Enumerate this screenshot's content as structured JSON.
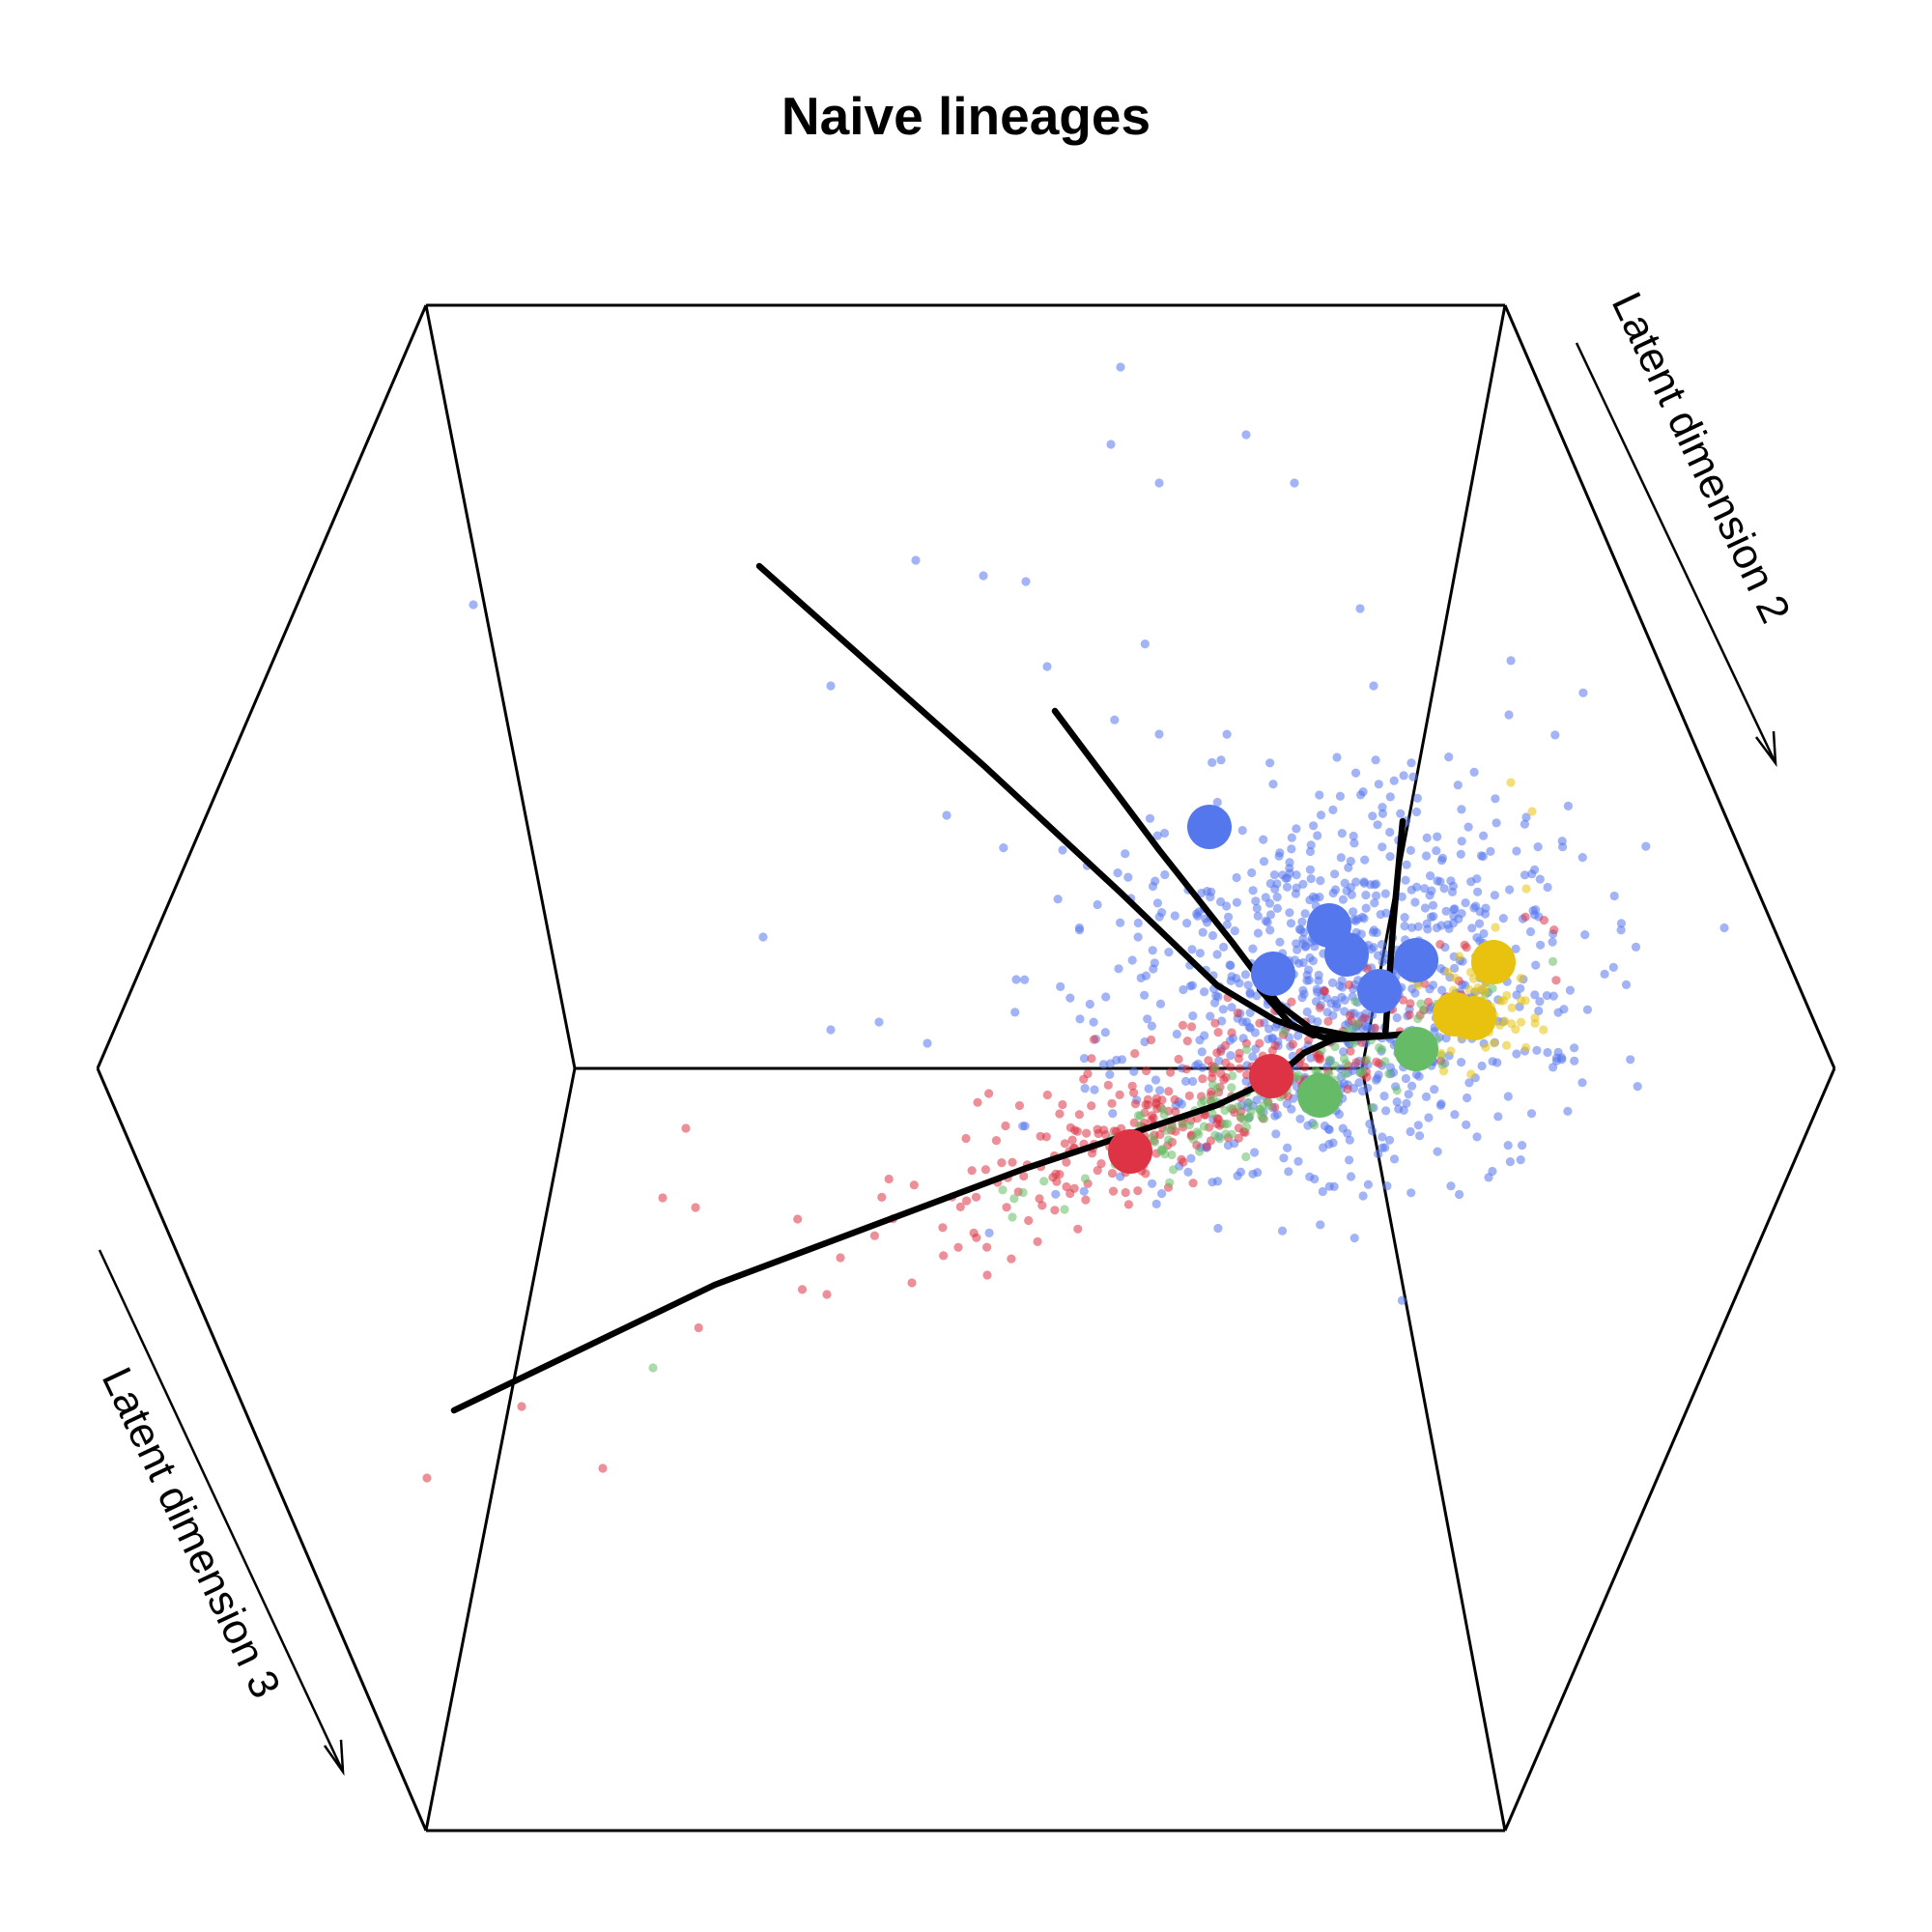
{
  "chart_data": {
    "type": "scatter",
    "title": "Naive lineages",
    "axis_labels": {
      "dim2": "Latent dimension 2",
      "dim3": "Latent dimension 3"
    },
    "colors": {
      "blue": "#5577ee",
      "red": "#dd3344",
      "green": "#66bb66",
      "yellow": "#e8c20f",
      "curve": "#000000"
    },
    "clusters": [
      {
        "color": "blue",
        "n": 900,
        "center": [
          0.695,
          0.51
        ],
        "spread": [
          0.062,
          0.05
        ],
        "rotation": -0.35,
        "outliers": [
          [
            0.58,
            0.19
          ],
          [
            0.575,
            0.23
          ],
          [
            0.645,
            0.225
          ],
          [
            0.67,
            0.25
          ],
          [
            0.6,
            0.25
          ],
          [
            0.474,
            0.29
          ],
          [
            0.509,
            0.298
          ],
          [
            0.531,
            0.301
          ],
          [
            0.245,
            0.313
          ],
          [
            0.43,
            0.355
          ],
          [
            0.395,
            0.485
          ],
          [
            0.49,
            0.422
          ],
          [
            0.704,
            0.315
          ],
          [
            0.711,
            0.355
          ],
          [
            0.781,
            0.37
          ],
          [
            0.79,
            0.423
          ],
          [
            0.785,
            0.515
          ],
          [
            0.43,
            0.533
          ],
          [
            0.48,
            0.54
          ],
          [
            0.55,
            0.44
          ],
          [
            0.6,
            0.38
          ],
          [
            0.542,
            0.345
          ],
          [
            0.455,
            0.529
          ],
          [
            0.526,
            0.507
          ]
        ]
      },
      {
        "color": "red",
        "n": 320,
        "center": [
          0.618,
          0.57
        ],
        "spread": [
          0.075,
          0.016
        ],
        "rotation": -0.42,
        "outliers": [
          [
            0.221,
            0.765
          ],
          [
            0.312,
            0.76
          ],
          [
            0.27,
            0.728
          ],
          [
            0.343,
            0.62
          ],
          [
            0.355,
            0.584
          ],
          [
            0.435,
            0.651
          ],
          [
            0.472,
            0.664
          ],
          [
            0.428,
            0.67
          ],
          [
            0.511,
            0.66
          ],
          [
            0.36,
            0.625
          ]
        ]
      },
      {
        "color": "green",
        "n": 150,
        "center": [
          0.655,
          0.565
        ],
        "spread": [
          0.055,
          0.01
        ],
        "rotation": -0.4,
        "outliers": [
          [
            0.338,
            0.708
          ],
          [
            0.551,
            0.626
          ],
          [
            0.524,
            0.63
          ]
        ]
      },
      {
        "color": "yellow",
        "n": 60,
        "center": [
          0.768,
          0.522
        ],
        "spread": [
          0.014,
          0.013
        ],
        "rotation": 0,
        "outliers": [
          [
            0.782,
            0.405
          ],
          [
            0.793,
            0.42
          ],
          [
            0.79,
            0.46
          ],
          [
            0.774,
            0.48
          ]
        ]
      }
    ],
    "centroids": [
      {
        "color": "blue",
        "points": [
          [
            0.626,
            0.428
          ],
          [
            0.688,
            0.479
          ],
          [
            0.697,
            0.494
          ],
          [
            0.733,
            0.497
          ],
          [
            0.659,
            0.504
          ],
          [
            0.714,
            0.513
          ]
        ]
      },
      {
        "color": "red",
        "points": [
          [
            0.658,
            0.557
          ],
          [
            0.585,
            0.596
          ]
        ]
      },
      {
        "color": "green",
        "points": [
          [
            0.683,
            0.567
          ],
          [
            0.733,
            0.543
          ]
        ]
      },
      {
        "color": "yellow",
        "points": [
          [
            0.773,
            0.498
          ],
          [
            0.763,
            0.527
          ],
          [
            0.753,
            0.525
          ]
        ]
      }
    ],
    "principal_curves": [
      [
        [
          0.393,
          0.293
        ],
        [
          0.51,
          0.397
        ],
        [
          0.58,
          0.462
        ],
        [
          0.63,
          0.51
        ],
        [
          0.66,
          0.528
        ],
        [
          0.685,
          0.537
        ],
        [
          0.705,
          0.537
        ],
        [
          0.73,
          0.535
        ]
      ],
      [
        [
          0.546,
          0.368
        ],
        [
          0.6,
          0.44
        ],
        [
          0.638,
          0.488
        ],
        [
          0.662,
          0.52
        ],
        [
          0.678,
          0.532
        ],
        [
          0.698,
          0.536
        ],
        [
          0.72,
          0.536
        ]
      ],
      [
        [
          0.235,
          0.73
        ],
        [
          0.37,
          0.665
        ],
        [
          0.53,
          0.605
        ],
        [
          0.63,
          0.572
        ],
        [
          0.66,
          0.558
        ],
        [
          0.675,
          0.545
        ],
        [
          0.69,
          0.538
        ],
        [
          0.72,
          0.536
        ],
        [
          0.73,
          0.535
        ]
      ],
      [
        [
          0.652,
          0.512
        ],
        [
          0.668,
          0.53
        ],
        [
          0.68,
          0.536
        ]
      ],
      [
        [
          0.726,
          0.425
        ],
        [
          0.721,
          0.48
        ],
        [
          0.717,
          0.536
        ]
      ]
    ]
  }
}
